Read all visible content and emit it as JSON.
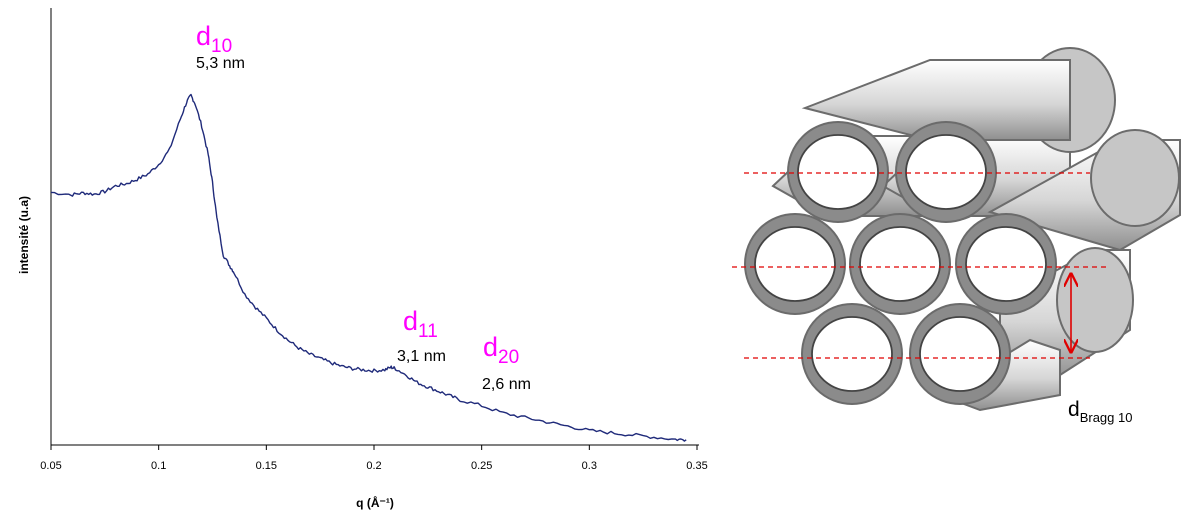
{
  "chart_data": {
    "type": "line",
    "xlabel": "q (Å⁻¹)",
    "ylabel": "intensité (u.a)",
    "xlim": [
      0.05,
      0.35
    ],
    "ylim": [
      0,
      1
    ],
    "xticks": [
      "0.05",
      "0.1",
      "0.15",
      "0.2",
      "0.25",
      "0.3",
      "0.35"
    ],
    "grid": false,
    "series": [
      {
        "color": "#1f2a7a",
        "points": [
          [
            0.05,
            0.578
          ],
          [
            0.06,
            0.573
          ],
          [
            0.065,
            0.577
          ],
          [
            0.07,
            0.574
          ],
          [
            0.075,
            0.58
          ],
          [
            0.08,
            0.593
          ],
          [
            0.085,
            0.598
          ],
          [
            0.09,
            0.608
          ],
          [
            0.095,
            0.62
          ],
          [
            0.1,
            0.642
          ],
          [
            0.105,
            0.675
          ],
          [
            0.11,
            0.745
          ],
          [
            0.113,
            0.785
          ],
          [
            0.115,
            0.8
          ],
          [
            0.117,
            0.78
          ],
          [
            0.12,
            0.73
          ],
          [
            0.123,
            0.665
          ],
          [
            0.125,
            0.6
          ],
          [
            0.127,
            0.52
          ],
          [
            0.13,
            0.435
          ],
          [
            0.133,
            0.41
          ],
          [
            0.135,
            0.395
          ],
          [
            0.14,
            0.345
          ],
          [
            0.145,
            0.315
          ],
          [
            0.15,
            0.29
          ],
          [
            0.155,
            0.263
          ],
          [
            0.16,
            0.24
          ],
          [
            0.165,
            0.222
          ],
          [
            0.17,
            0.208
          ],
          [
            0.175,
            0.198
          ],
          [
            0.18,
            0.188
          ],
          [
            0.185,
            0.18
          ],
          [
            0.19,
            0.175
          ],
          [
            0.195,
            0.172
          ],
          [
            0.2,
            0.17
          ],
          [
            0.205,
            0.172
          ],
          [
            0.208,
            0.178
          ],
          [
            0.21,
            0.175
          ],
          [
            0.215,
            0.16
          ],
          [
            0.22,
            0.143
          ],
          [
            0.225,
            0.133
          ],
          [
            0.23,
            0.123
          ],
          [
            0.235,
            0.113
          ],
          [
            0.24,
            0.103
          ],
          [
            0.25,
            0.09
          ],
          [
            0.26,
            0.073
          ],
          [
            0.27,
            0.063
          ],
          [
            0.28,
            0.053
          ],
          [
            0.29,
            0.043
          ],
          [
            0.3,
            0.033
          ],
          [
            0.31,
            0.028
          ],
          [
            0.32,
            0.023
          ],
          [
            0.33,
            0.018
          ],
          [
            0.34,
            0.013
          ],
          [
            0.345,
            0.012
          ]
        ]
      }
    ],
    "annotations": [
      {
        "symbol": "d",
        "sub": "10",
        "value": "5,3 nm",
        "color": "#ff00ff"
      },
      {
        "symbol": "d",
        "sub": "11",
        "value": "3,1 nm",
        "color": "#ff00ff"
      },
      {
        "symbol": "d",
        "sub": "20",
        "value": "2,6 nm",
        "color": "#ff00ff"
      }
    ]
  },
  "schematic": {
    "label_symbol": "d",
    "label_sub": "Bragg 10",
    "line_color": "#e00000"
  }
}
